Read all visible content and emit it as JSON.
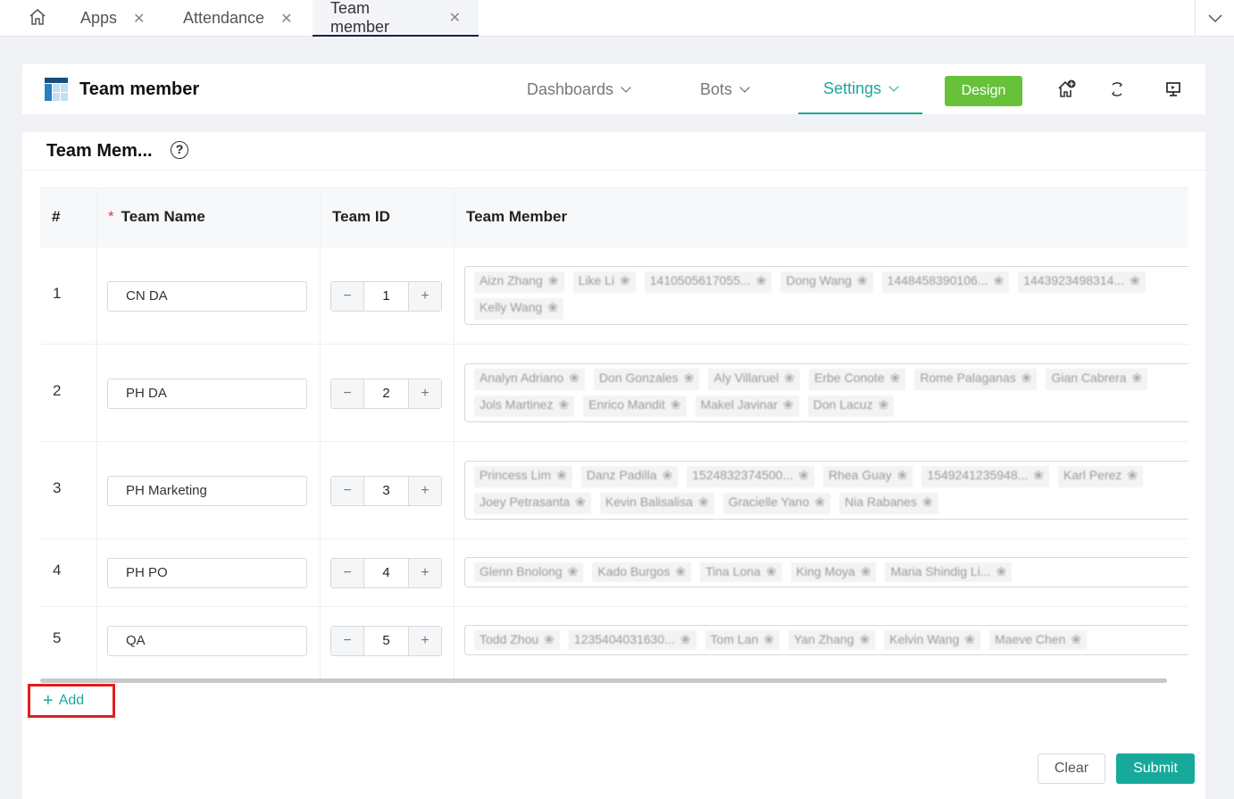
{
  "tabs": [
    {
      "label": "Apps"
    },
    {
      "label": "Attendance"
    },
    {
      "label": "Team member"
    }
  ],
  "header": {
    "title": "Team member",
    "nav": [
      {
        "label": "Dashboards"
      },
      {
        "label": "Bots"
      },
      {
        "label": "Settings"
      }
    ],
    "design_label": "Design"
  },
  "card": {
    "title": "Team Mem...",
    "columns": [
      "#",
      "Team Name",
      "Team ID",
      "Team Member"
    ],
    "required_mark": "*"
  },
  "rows": [
    {
      "index": "1",
      "team_name": "CN DA",
      "team_id": "1",
      "members": [
        "Aizn Zhang",
        "Like Li",
        "1410505617055...",
        "Dong Wang",
        "1448458390106...",
        "1443923498314...",
        "Kelly Wang"
      ]
    },
    {
      "index": "2",
      "team_name": "PH DA",
      "team_id": "2",
      "members": [
        "Analyn Adriano",
        "Don Gonzales",
        "Aly Villaruel",
        "Erbe Conote",
        "Rome Palaganas",
        "Gian Cabrera",
        "Jols Martinez",
        "Enrico Mandit",
        "Makel Javinar",
        "Don Lacuz"
      ]
    },
    {
      "index": "3",
      "team_name": "PH Marketing",
      "team_id": "3",
      "members": [
        "Princess Lim",
        "Danz Padilla",
        "1524832374500...",
        "Rhea Guay",
        "1549241235948...",
        "Karl Perez",
        "Joey Petrasanta",
        "Kevin Balisalisa",
        "Gracielle Yano",
        "Nia Rabanes"
      ]
    },
    {
      "index": "4",
      "team_name": "PH PO",
      "team_id": "4",
      "members": [
        "Glenn Bnolong",
        "Kado Burgos",
        "Tina Lona",
        "King Moya",
        "Maria Shindig Li..."
      ]
    },
    {
      "index": "5",
      "team_name": "QA",
      "team_id": "5",
      "members": [
        "Todd Zhou",
        "1235404031630...",
        "Tom Lan",
        "Yan Zhang",
        "Kelvin Wang",
        "Maeve Chen"
      ]
    }
  ],
  "stepper": {
    "minus": "−",
    "plus": "+"
  },
  "footer": {
    "add_label": "Add",
    "clear_label": "Clear",
    "submit_label": "Submit"
  },
  "colors": {
    "accent": "#17a99b",
    "design": "#67c23a",
    "highlight": "#e01e1e"
  }
}
